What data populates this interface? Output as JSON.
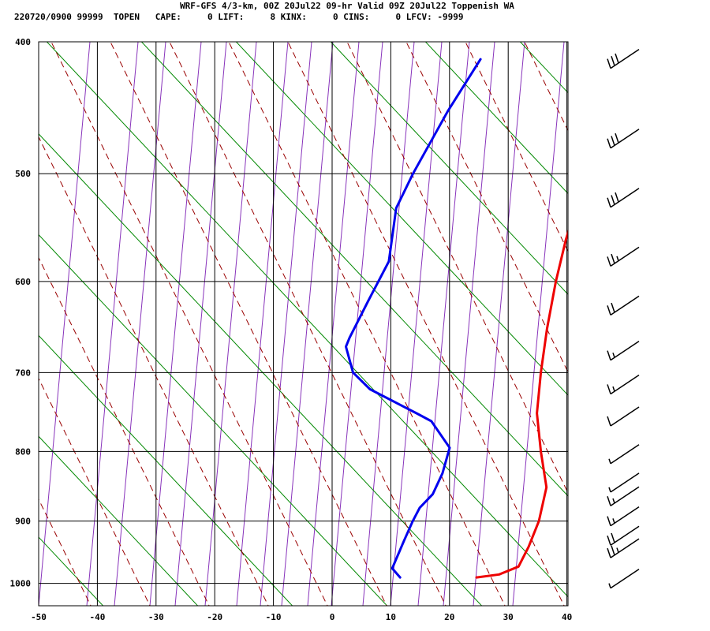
{
  "header": {
    "title": "WRF-GFS 4/3-km, 00Z 20Jul22 09-hr Valid 09Z 20Jul22 Toppenish WA",
    "info": "220720/0900 99999  TOPEN   CAPE:     0 LIFT:     8 KINX:     0 CINS:     0 LFCV: -9999"
  },
  "chart_data": {
    "type": "line",
    "title": "WRF-GFS 4/3-km, 00Z 20Jul22 09-hr Valid 09Z 20Jul22 Toppenish WA",
    "xlabel": "",
    "ylabel": "",
    "x_ticks": [
      -50,
      -40,
      -30,
      -20,
      -10,
      0,
      10,
      20,
      30,
      40
    ],
    "y_ticks": [
      400,
      500,
      600,
      700,
      800,
      900,
      1000
    ],
    "xlim": [
      -50,
      40
    ],
    "ylim": [
      1040,
      400
    ],
    "grid": true,
    "colors": {
      "temperature": "#ee0000",
      "dewpoint": "#0000ee",
      "dry_adiabat": "#008800",
      "moist_adiabat": "#990000",
      "mixing_ratio": "#8833bb"
    },
    "series": [
      {
        "key": "temperature",
        "points": [
          {
            "p": 412,
            "t": -20
          },
          {
            "p": 450,
            "t": -16.5
          },
          {
            "p": 500,
            "t": -12
          },
          {
            "p": 530,
            "t": -9
          },
          {
            "p": 560,
            "t": -6.5
          },
          {
            "p": 600,
            "t": -3
          },
          {
            "p": 650,
            "t": 1.5
          },
          {
            "p": 700,
            "t": 6
          },
          {
            "p": 750,
            "t": 10.5
          },
          {
            "p": 800,
            "t": 16
          },
          {
            "p": 850,
            "t": 21.5
          },
          {
            "p": 900,
            "t": 24.5
          },
          {
            "p": 940,
            "t": 26
          },
          {
            "p": 972,
            "t": 26.8
          },
          {
            "p": 985,
            "t": 24.5
          },
          {
            "p": 990,
            "t": 21
          }
        ]
      },
      {
        "key": "dewpoint",
        "points": [
          {
            "p": 412,
            "t": -44
          },
          {
            "p": 450,
            "t": -43
          },
          {
            "p": 500,
            "t": -41
          },
          {
            "p": 530,
            "t": -39.5
          },
          {
            "p": 580,
            "t": -34
          },
          {
            "p": 620,
            "t": -32.5
          },
          {
            "p": 660,
            "t": -31
          },
          {
            "p": 670,
            "t": -30.5
          },
          {
            "p": 700,
            "t": -26
          },
          {
            "p": 720,
            "t": -21
          },
          {
            "p": 750,
            "t": -10
          },
          {
            "p": 760,
            "t": -6.5
          },
          {
            "p": 795,
            "t": 0
          },
          {
            "p": 830,
            "t": 2
          },
          {
            "p": 860,
            "t": 3
          },
          {
            "p": 880,
            "t": 2.5
          },
          {
            "p": 900,
            "t": 3
          },
          {
            "p": 930,
            "t": 4
          },
          {
            "p": 960,
            "t": 5
          },
          {
            "p": 975,
            "t": 5.5
          },
          {
            "p": 990,
            "t": 8
          }
        ]
      }
    ],
    "winds": [
      {
        "p": 415,
        "barbs": 3
      },
      {
        "p": 475,
        "barbs": 3
      },
      {
        "p": 525,
        "barbs": 3
      },
      {
        "p": 580,
        "barbs": 2.5
      },
      {
        "p": 630,
        "barbs": 2
      },
      {
        "p": 680,
        "barbs": 1.5
      },
      {
        "p": 720,
        "barbs": 1.5
      },
      {
        "p": 760,
        "barbs": 1
      },
      {
        "p": 810,
        "barbs": 0.5
      },
      {
        "p": 850,
        "barbs": 0.5
      },
      {
        "p": 870,
        "barbs": 1.5
      },
      {
        "p": 900,
        "barbs": 1.5
      },
      {
        "p": 930,
        "barbs": 2
      },
      {
        "p": 950,
        "barbs": 2.5
      },
      {
        "p": 1000,
        "barbs": 0.5
      }
    ]
  }
}
